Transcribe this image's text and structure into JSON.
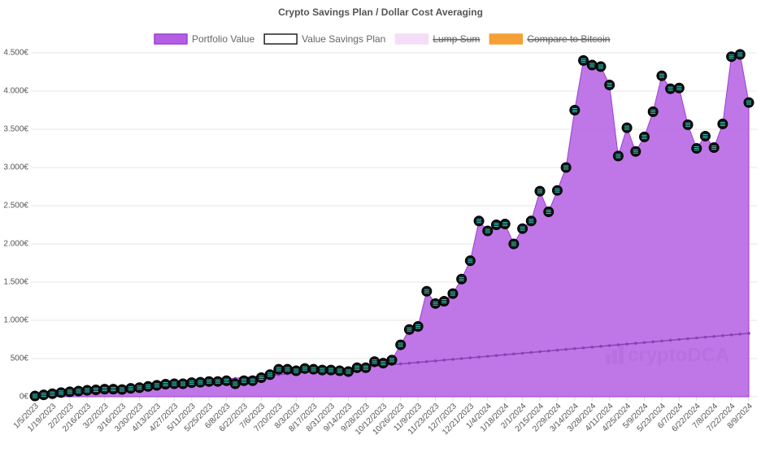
{
  "chart_data": {
    "type": "area",
    "title": "Crypto Savings Plan / Dollar Cost Averaging",
    "watermark": "cryptoDCA",
    "categories": [
      "1/5/2023",
      null,
      "1/19/2023",
      null,
      "2/2/2023",
      null,
      "2/16/2023",
      null,
      "3/2/2023",
      null,
      "3/16/2023",
      null,
      "3/30/2023",
      null,
      "4/13/2023",
      null,
      "4/27/2023",
      null,
      "5/11/2023",
      null,
      "5/25/2023",
      null,
      "6/8/2023",
      null,
      "6/22/2023",
      null,
      "7/6/2023",
      null,
      "7/20/2023",
      null,
      "8/3/2023",
      null,
      "8/17/2023",
      null,
      "8/31/2023",
      null,
      "9/14/2023",
      null,
      "9/28/2023",
      null,
      "10/12/2023",
      null,
      "10/26/2023",
      null,
      "11/9/2023",
      null,
      "11/23/2023",
      null,
      "12/7/2023",
      null,
      "12/21/2023",
      null,
      "1/4/2024",
      null,
      "1/18/2024",
      null,
      "2/1/2024",
      null,
      "2/15/2024",
      null,
      "2/29/2024",
      null,
      "3/14/2024",
      null,
      "3/28/2024",
      null,
      "4/11/2024",
      null,
      "4/25/2024",
      null,
      "5/9/2024",
      null,
      "5/23/2024",
      null,
      "6/7/2024",
      null,
      "6/22/2024",
      null,
      "7/8/2024",
      null,
      "7/22/2024",
      null,
      "8/9/2024"
    ],
    "series": [
      {
        "name": "Portfolio Value",
        "color": "#b45fe3",
        "values": [
          10,
          25,
          40,
          55,
          65,
          75,
          85,
          90,
          100,
          100,
          95,
          110,
          120,
          135,
          150,
          165,
          170,
          170,
          185,
          190,
          200,
          200,
          210,
          170,
          210,
          210,
          250,
          290,
          360,
          360,
          340,
          370,
          360,
          350,
          350,
          340,
          330,
          380,
          380,
          460,
          440,
          480,
          680,
          880,
          920,
          1380,
          1220,
          1250,
          1350,
          1540,
          1780,
          2300,
          2170,
          2250,
          2260,
          2000,
          2200,
          2300,
          2690,
          2420,
          2700,
          3000,
          3750,
          4400,
          4340,
          4320,
          4080,
          3150,
          3520,
          3210,
          3400,
          3730,
          4200,
          4030,
          4040,
          3560,
          3250,
          3410,
          3260,
          3570,
          4450,
          4480,
          3850
        ]
      },
      {
        "name": "Value Savings Plan",
        "color": "#8e3fb5",
        "values": [
          10,
          20,
          30,
          40,
          50,
          60,
          70,
          80,
          90,
          100,
          110,
          120,
          130,
          140,
          150,
          160,
          170,
          180,
          190,
          200,
          210,
          220,
          230,
          240,
          250,
          260,
          270,
          280,
          290,
          300,
          310,
          320,
          330,
          340,
          350,
          360,
          370,
          380,
          390,
          400,
          410,
          420,
          430,
          440,
          450,
          460,
          470,
          480,
          490,
          500,
          510,
          520,
          530,
          540,
          550,
          560,
          570,
          580,
          590,
          600,
          610,
          620,
          630,
          640,
          650,
          660,
          670,
          680,
          690,
          700,
          710,
          720,
          730,
          740,
          750,
          760,
          770,
          780,
          790,
          800,
          810,
          820,
          830
        ]
      }
    ],
    "hidden_legend": [
      {
        "name": "Lump Sum",
        "color": "#f3ddf7"
      },
      {
        "name": "Compare to Bitcoin",
        "color": "#f5a035"
      }
    ],
    "ylim": [
      0,
      4500
    ],
    "yticks": [
      {
        "value": 0,
        "label": "0€"
      },
      {
        "value": 500,
        "label": "500€"
      },
      {
        "value": 1000,
        "label": "1.000€"
      },
      {
        "value": 1500,
        "label": "1.500€"
      },
      {
        "value": 2000,
        "label": "2.000€"
      },
      {
        "value": 2500,
        "label": "2.500€"
      },
      {
        "value": 3000,
        "label": "3.000€"
      },
      {
        "value": 3500,
        "label": "3.500€"
      },
      {
        "value": 4000,
        "label": "4.000€"
      },
      {
        "value": 4500,
        "label": "4.500€"
      }
    ],
    "grid": true
  }
}
